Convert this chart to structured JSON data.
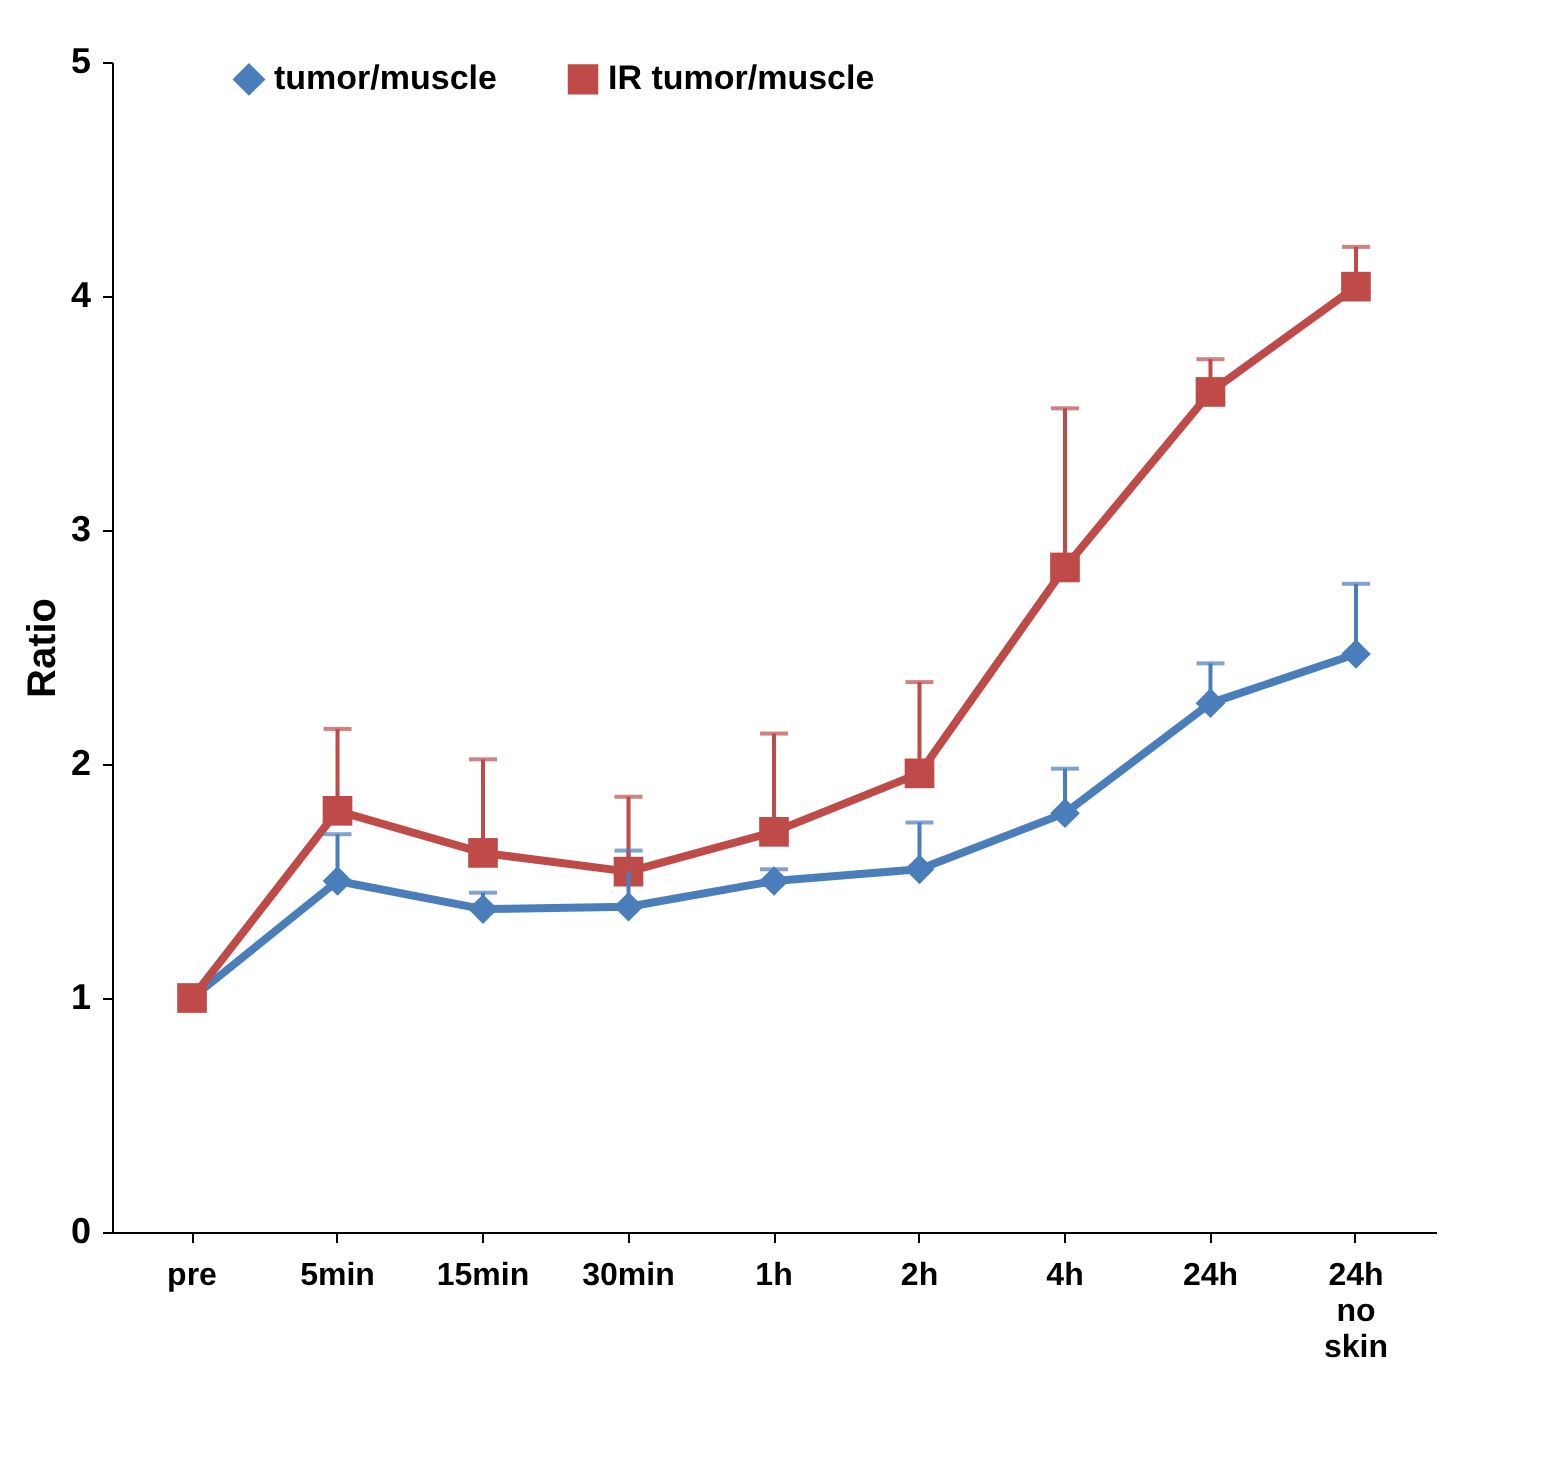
{
  "chart_data": {
    "type": "line",
    "ylabel": "Ratio",
    "categories": [
      "pre",
      "5min",
      "15min",
      "30min",
      "1h",
      "2h",
      "4h",
      "24h",
      "24h no skin"
    ],
    "series": [
      {
        "name": "tumor/muscle",
        "color": "#4a7ebb",
        "marker": "diamond",
        "values": [
          1.0,
          1.5,
          1.38,
          1.39,
          1.5,
          1.55,
          1.79,
          2.26,
          2.47
        ],
        "errors": [
          null,
          [
            1.5,
            1.7
          ],
          [
            1.38,
            1.45
          ],
          [
            1.39,
            1.63
          ],
          [
            1.5,
            1.55
          ],
          [
            1.55,
            1.75
          ],
          [
            1.79,
            1.98
          ],
          [
            2.26,
            2.43
          ],
          [
            2.47,
            2.77
          ]
        ]
      },
      {
        "name": "IR tumor/muscle",
        "color": "#be4b48",
        "marker": "square",
        "values": [
          1.0,
          1.8,
          1.62,
          1.54,
          1.71,
          1.96,
          2.84,
          3.59,
          4.04
        ],
        "errors": [
          null,
          [
            1.8,
            2.15
          ],
          [
            1.62,
            2.02
          ],
          [
            1.54,
            1.86
          ],
          [
            1.71,
            2.13
          ],
          [
            1.96,
            2.35
          ],
          [
            2.84,
            3.52
          ],
          [
            3.59,
            3.73
          ],
          [
            4.04,
            4.21
          ]
        ]
      }
    ],
    "ylim": [
      0,
      5
    ],
    "yticks": [
      0,
      1,
      2,
      3,
      4,
      5
    ],
    "grid": false,
    "legend": "top",
    "line_style": "solid"
  }
}
